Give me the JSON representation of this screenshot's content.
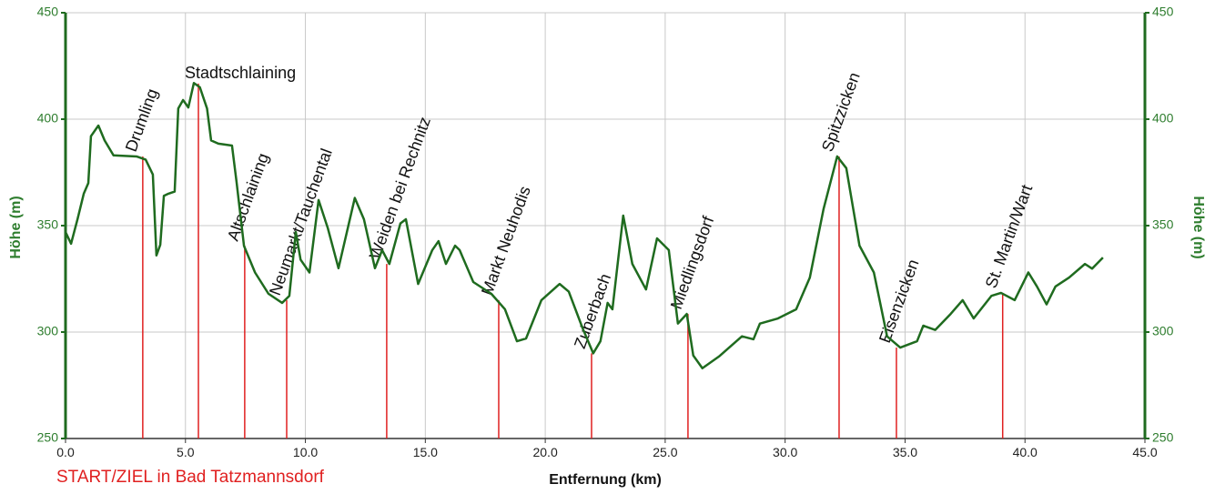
{
  "chart_data": {
    "type": "line",
    "xlabel": "Entfernung (km)",
    "ylabel": "Höhe (m)",
    "y2label": "Höhe (m)",
    "note": "START/ZIEL in Bad Tatzmannsdorf",
    "xlim": [
      0,
      45
    ],
    "xticks": [
      {
        "value": 0,
        "label": "0.0"
      },
      {
        "value": 5,
        "label": "5.0"
      },
      {
        "value": 10,
        "label": "10.0"
      },
      {
        "value": 15,
        "label": "15.0"
      },
      {
        "value": 20,
        "label": "20.0"
      },
      {
        "value": 25,
        "label": "25.0"
      },
      {
        "value": 30,
        "label": "30.0"
      },
      {
        "value": 35,
        "label": "35.0"
      },
      {
        "value": 40,
        "label": "40.0"
      },
      {
        "value": 45,
        "label": "45.0"
      }
    ],
    "ylim": [
      250,
      450
    ],
    "yticks": [
      250,
      300,
      350,
      400,
      450
    ],
    "y2lim": [
      250,
      450
    ],
    "y2ticks": [
      250,
      300,
      350,
      400,
      450
    ],
    "grid": true,
    "series": [
      {
        "name": "Höhe",
        "color": "#1f6b1f",
        "x": [
          0,
          0.23,
          0.5,
          0.76,
          0.95,
          1.06,
          1.37,
          1.63,
          2.0,
          2.96,
          3.34,
          3.64,
          3.79,
          3.95,
          4.1,
          4.29,
          4.55,
          4.7,
          4.9,
          5.12,
          5.35,
          5.6,
          5.9,
          6.07,
          6.37,
          6.94,
          7.13,
          7.44,
          7.9,
          8.46,
          9.03,
          9.33,
          9.6,
          9.8,
          10.17,
          10.55,
          10.93,
          11.38,
          12.06,
          12.44,
          12.9,
          13.2,
          13.5,
          13.96,
          14.19,
          14.7,
          15.29,
          15.55,
          15.86,
          16.24,
          16.43,
          17.0,
          17.75,
          18.32,
          18.82,
          19.2,
          19.84,
          20.6,
          20.98,
          21.55,
          22.0,
          22.3,
          22.6,
          22.8,
          23.25,
          23.63,
          24.2,
          24.66,
          25.15,
          25.53,
          25.9,
          26.17,
          26.55,
          27.24,
          28.2,
          28.68,
          28.95,
          29.7,
          30.46,
          31.03,
          31.6,
          32.17,
          32.55,
          33.1,
          33.7,
          34.25,
          34.8,
          35.5,
          35.76,
          36.26,
          36.9,
          37.4,
          37.86,
          38.6,
          39.0,
          39.57,
          40.14,
          40.5,
          40.9,
          41.27,
          41.84,
          42.5,
          42.8,
          43.25
        ],
        "values": [
          347,
          341.5,
          353,
          365,
          370,
          392,
          397,
          390,
          383,
          382.5,
          381,
          374,
          336,
          341,
          364,
          365,
          366,
          405,
          409,
          405.5,
          417,
          415,
          405,
          390,
          388.5,
          387.6,
          370.5,
          340.5,
          328,
          318,
          313.7,
          317,
          347,
          334,
          328,
          362,
          349,
          330,
          363,
          353,
          330,
          338.5,
          332,
          351,
          353,
          322.6,
          338.5,
          342.7,
          332,
          340.6,
          338.5,
          323.5,
          318,
          310.7,
          295.7,
          297,
          315,
          322.6,
          319,
          302,
          290,
          295.7,
          313.7,
          310.7,
          354.7,
          332,
          320,
          344,
          338.5,
          304,
          308.5,
          289,
          283,
          288.5,
          298,
          296.6,
          304,
          306.4,
          310.7,
          325.6,
          357.7,
          382.5,
          377,
          340.6,
          328,
          298,
          292.7,
          295.7,
          303,
          301,
          308.5,
          315,
          306.4,
          317,
          318.4,
          315,
          328,
          321.4,
          313,
          321.4,
          325.6,
          332,
          329.8,
          335
        ]
      }
    ],
    "annotations": [
      {
        "label": "Drumling",
        "x": 3.22,
        "y": 382.5
      },
      {
        "label": "Stadtschlaining",
        "x": 5.54,
        "y": 416.7
      },
      {
        "label": "Altschlaining",
        "x": 7.47,
        "y": 340.6
      },
      {
        "label": "Neumarkt/Tauchental",
        "x": 9.22,
        "y": 315
      },
      {
        "label": "Weiden bei Rechnitz",
        "x": 13.39,
        "y": 332
      },
      {
        "label": "Markt Neuhodis",
        "x": 18.06,
        "y": 315
      },
      {
        "label": "Zuberbach",
        "x": 21.93,
        "y": 290
      },
      {
        "label": "Miedlingsdorf",
        "x": 25.95,
        "y": 308.5
      },
      {
        "label": "Spitzzicken",
        "x": 32.25,
        "y": 382.5
      },
      {
        "label": "Eisenzicken",
        "x": 34.64,
        "y": 292.7
      },
      {
        "label": "St. Martin/Wart",
        "x": 39.07,
        "y": 318.4
      }
    ],
    "annotation_color": "#e02020"
  }
}
